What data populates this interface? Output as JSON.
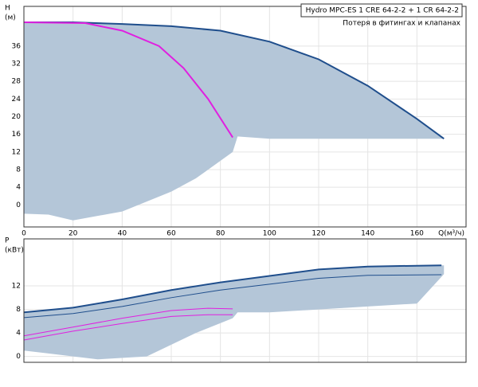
{
  "chart_data": [
    {
      "type": "line",
      "legend": [
        "Hydro MPC-ES 1 CRE 64-2-2  +  1 CR 64-2-2",
        "Потеря в фитингах и клапанах"
      ],
      "ylabel": [
        "H",
        "(м)"
      ],
      "xlabel": "Q(м³/ч)",
      "xlim": [
        0,
        180
      ],
      "xticks": [
        0,
        20,
        40,
        60,
        80,
        100,
        120,
        140,
        160
      ],
      "ylim": [
        -5,
        45
      ],
      "yticks": [
        0,
        4,
        8,
        12,
        16,
        20,
        24,
        28,
        32,
        36
      ],
      "grid": true,
      "area": {
        "color": "#b4c6d8",
        "x": [
          0,
          20,
          40,
          60,
          80,
          100,
          120,
          140,
          160,
          171,
          100,
          87,
          85,
          70,
          60,
          40,
          20,
          10,
          0
        ],
        "y": [
          41.4,
          41.4,
          41,
          40.5,
          39.5,
          37,
          33,
          27,
          19.5,
          15,
          15,
          15.5,
          12,
          6,
          3,
          -1.5,
          -3.5,
          -2.2,
          -2
        ]
      },
      "series": [
        {
          "color": "#1f4e8c",
          "width": 2,
          "x": [
            0,
            20,
            40,
            60,
            80,
            100,
            120,
            140,
            160,
            171
          ],
          "values": [
            41.4,
            41.4,
            41,
            40.5,
            39.5,
            37,
            33,
            27,
            19.5,
            15
          ]
        },
        {
          "color": "#e020e0",
          "width": 2,
          "x": [
            0,
            25,
            40,
            55,
            65,
            75,
            85
          ],
          "values": [
            41.4,
            41.2,
            39.5,
            36,
            31,
            24,
            15.3
          ]
        }
      ]
    },
    {
      "type": "line",
      "ylabel": [
        "P",
        "(кВт)"
      ],
      "xlim": [
        0,
        180
      ],
      "xticks": [
        0,
        20,
        40,
        60,
        80,
        100,
        120,
        140,
        160
      ],
      "ylim": [
        -1,
        20
      ],
      "yticks": [
        0,
        4,
        8,
        12
      ],
      "grid": true,
      "area": {
        "color": "#b4c6d8",
        "x": [
          0,
          20,
          40,
          60,
          80,
          100,
          120,
          140,
          171,
          171,
          160,
          100,
          87,
          85,
          70,
          50,
          30,
          10,
          0
        ],
        "y": [
          7.5,
          8.3,
          9.7,
          11.3,
          12.6,
          13.7,
          14.8,
          15.3,
          15.5,
          14,
          9,
          7.5,
          7.5,
          6.5,
          4,
          0,
          -0.5,
          0.5,
          1
        ]
      },
      "series": [
        {
          "color": "#1f4e8c",
          "width": 2,
          "x": [
            0,
            20,
            40,
            60,
            80,
            100,
            120,
            140,
            170
          ],
          "values": [
            7.5,
            8.3,
            9.7,
            11.3,
            12.6,
            13.7,
            14.8,
            15.3,
            15.5
          ]
        },
        {
          "color": "#1f4e8c",
          "width": 1,
          "x": [
            0,
            20,
            40,
            60,
            80,
            100,
            120,
            140,
            170
          ],
          "values": [
            6.6,
            7.3,
            8.5,
            10,
            11.3,
            12.3,
            13.3,
            13.8,
            13.9
          ]
        },
        {
          "color": "#e020e0",
          "width": 1,
          "x": [
            0,
            20,
            40,
            60,
            75,
            85
          ],
          "values": [
            3.5,
            5,
            6.5,
            7.8,
            8.2,
            8.1
          ]
        },
        {
          "color": "#e020e0",
          "width": 1,
          "x": [
            0,
            20,
            40,
            60,
            75,
            85
          ],
          "values": [
            2.8,
            4.3,
            5.6,
            6.8,
            7.1,
            7.1
          ]
        }
      ]
    }
  ]
}
